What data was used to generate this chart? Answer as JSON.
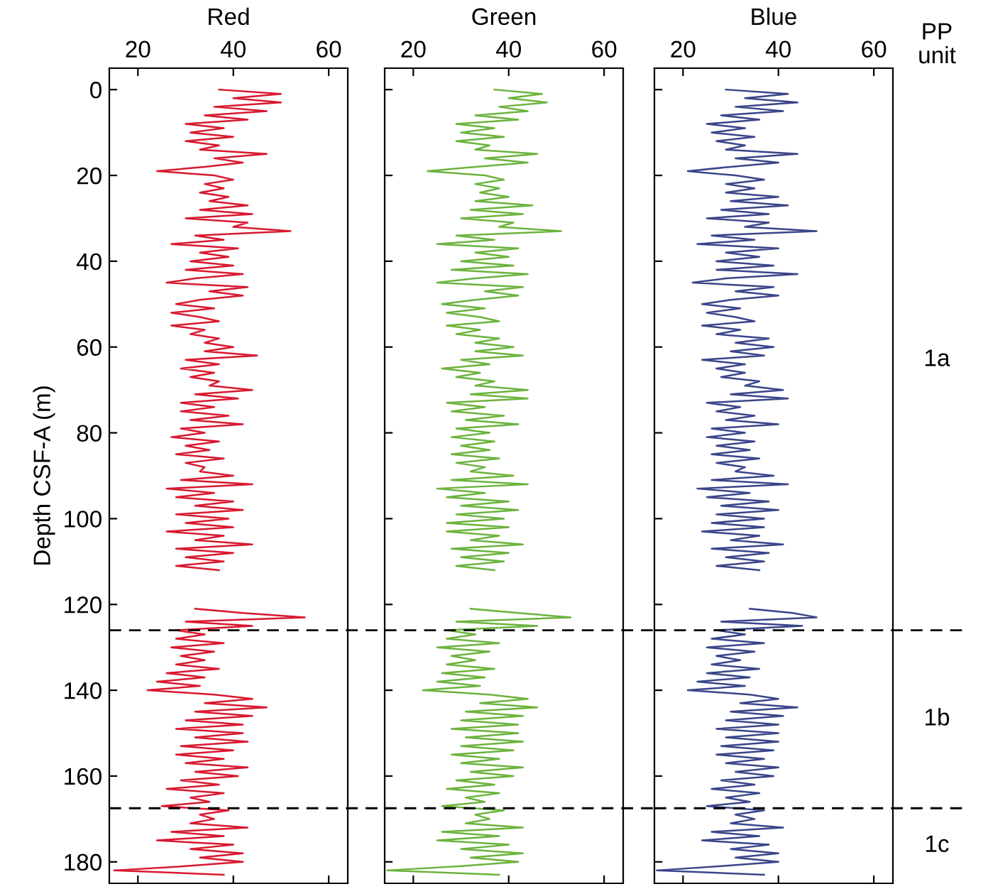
{
  "chart_data": [
    {
      "type": "line",
      "title": "Red",
      "ylabel": "Depth CSF-A (m)",
      "xlim": [
        14,
        64
      ],
      "xticks": [
        20,
        40,
        60
      ],
      "ylim": [
        185,
        -5
      ],
      "yticks": [
        0,
        20,
        40,
        60,
        80,
        100,
        120,
        140,
        160,
        180
      ],
      "grid": false,
      "line_style": "solid",
      "ref_lines": [
        {
          "axis": "y",
          "value": 126,
          "color": "#000000",
          "line_style": "dashed"
        },
        {
          "axis": "y",
          "value": 167.5,
          "color": "#000000",
          "line_style": "dashed"
        }
      ],
      "series": [
        {
          "color": "#d7192f",
          "x": [
            37,
            50,
            40,
            50,
            36,
            47,
            34,
            43,
            30,
            38,
            31,
            40,
            30,
            37,
            33,
            47,
            36,
            42,
            34,
            24,
            36,
            40,
            34,
            38,
            33,
            39,
            35,
            43,
            33,
            44,
            30,
            43,
            40,
            52,
            32,
            38,
            27,
            41,
            33,
            39,
            31,
            40,
            30,
            42,
            32,
            26,
            43,
            35,
            42,
            33,
            28,
            36,
            27,
            33,
            37,
            27,
            34,
            31,
            37,
            34,
            40,
            34,
            45,
            30,
            37,
            29,
            36,
            31,
            37,
            35,
            44,
            32,
            41,
            29,
            36,
            29,
            39,
            31,
            42,
            29,
            34,
            27,
            37,
            30,
            35,
            28,
            38,
            30,
            34,
            33,
            40,
            29,
            44,
            26,
            36,
            28,
            40,
            32,
            42,
            28,
            39,
            30,
            40,
            26,
            38,
            32,
            44,
            28,
            40,
            30,
            38,
            28,
            37,
            null,
            32,
            42,
            55,
            30,
            44,
            28,
            34,
            28,
            38,
            27,
            36,
            29,
            34,
            28,
            37,
            26,
            34,
            24,
            33,
            22,
            36,
            44,
            34,
            47,
            32,
            44,
            30,
            42,
            28,
            42,
            32,
            43,
            29,
            40,
            28,
            38,
            30,
            43,
            32,
            41,
            29,
            37,
            26,
            38,
            31,
            35,
            25,
            39,
            33,
            36,
            31,
            43,
            27,
            38,
            24,
            40,
            31,
            42,
            33,
            42,
            30,
            15,
            38
          ],
          "values": [
            0,
            1,
            2,
            3,
            4,
            5,
            6,
            7,
            8,
            9,
            10,
            11,
            12,
            13,
            14,
            15,
            16,
            17,
            18,
            19,
            20,
            21,
            22,
            23,
            24,
            25,
            26,
            27,
            28,
            29,
            30,
            31,
            32,
            33,
            34,
            35,
            36,
            37,
            38,
            39,
            40,
            41,
            42,
            43,
            44,
            45,
            46,
            47,
            48,
            49,
            50,
            51,
            52,
            53,
            54,
            55,
            56,
            57,
            58,
            59,
            60,
            61,
            62,
            63,
            64,
            65,
            66,
            67,
            68,
            69,
            70,
            71,
            72,
            73,
            74,
            75,
            76,
            77,
            78,
            79,
            80,
            81,
            82,
            83,
            84,
            85,
            86,
            87,
            88,
            89,
            90,
            91,
            92,
            93,
            94,
            95,
            96,
            97,
            98,
            99,
            100,
            101,
            102,
            103,
            104,
            105,
            106,
            107,
            108,
            109,
            110,
            111,
            112,
            null,
            121,
            122,
            123,
            124,
            125,
            126,
            127,
            128,
            129,
            130,
            131,
            132,
            133,
            134,
            135,
            136,
            137,
            138,
            139,
            140,
            141,
            142,
            143,
            144,
            145,
            146,
            147,
            148,
            149,
            150,
            151,
            152,
            153,
            154,
            155,
            156,
            157,
            158,
            159,
            160,
            161,
            162,
            163,
            164,
            165,
            166,
            167,
            168,
            169,
            170,
            171,
            172,
            173,
            174,
            175,
            176,
            177,
            178,
            179,
            180,
            181,
            182,
            183
          ]
        }
      ]
    },
    {
      "type": "line",
      "title": "Green",
      "xlim": [
        14,
        64
      ],
      "xticks": [
        20,
        40,
        60
      ],
      "ylim": [
        185,
        -5
      ],
      "yticks": [
        0,
        20,
        40,
        60,
        80,
        100,
        120,
        140,
        160,
        180
      ],
      "tick_labels": "x",
      "grid": false,
      "line_style": "solid",
      "ref_lines": [
        {
          "axis": "y",
          "value": 126,
          "color": "#000000",
          "line_style": "dashed"
        },
        {
          "axis": "y",
          "value": 167.5,
          "color": "#000000",
          "line_style": "dashed"
        }
      ],
      "series": [
        {
          "color": "#6cb33f",
          "x": [
            37,
            47,
            40,
            48,
            38,
            44,
            33,
            42,
            29,
            37,
            30,
            39,
            29,
            36,
            33,
            46,
            35,
            44,
            33,
            23,
            35,
            39,
            33,
            38,
            34,
            40,
            33,
            45,
            32,
            43,
            30,
            41,
            38,
            51,
            29,
            37,
            25,
            42,
            33,
            40,
            30,
            41,
            28,
            44,
            33,
            25,
            43,
            35,
            42,
            33,
            26,
            35,
            27,
            34,
            38,
            27,
            34,
            29,
            38,
            33,
            41,
            33,
            43,
            30,
            36,
            26,
            34,
            29,
            37,
            33,
            44,
            32,
            44,
            27,
            35,
            28,
            39,
            31,
            42,
            29,
            36,
            28,
            37,
            30,
            36,
            28,
            38,
            29,
            35,
            32,
            41,
            28,
            44,
            25,
            35,
            27,
            40,
            30,
            42,
            29,
            39,
            27,
            40,
            27,
            38,
            32,
            43,
            28,
            40,
            30,
            39,
            29,
            37,
            null,
            32,
            42,
            53,
            29,
            46,
            27,
            33,
            27,
            38,
            25,
            36,
            28,
            33,
            27,
            37,
            26,
            35,
            25,
            34,
            22,
            36,
            44,
            34,
            46,
            31,
            43,
            30,
            42,
            28,
            42,
            31,
            43,
            30,
            41,
            28,
            38,
            30,
            43,
            32,
            41,
            29,
            37,
            27,
            38,
            31,
            35,
            26,
            39,
            33,
            36,
            31,
            43,
            26,
            38,
            25,
            40,
            30,
            43,
            32,
            42,
            30,
            14.5,
            38
          ],
          "values": [
            0,
            1,
            2,
            3,
            4,
            5,
            6,
            7,
            8,
            9,
            10,
            11,
            12,
            13,
            14,
            15,
            16,
            17,
            18,
            19,
            20,
            21,
            22,
            23,
            24,
            25,
            26,
            27,
            28,
            29,
            30,
            31,
            32,
            33,
            34,
            35,
            36,
            37,
            38,
            39,
            40,
            41,
            42,
            43,
            44,
            45,
            46,
            47,
            48,
            49,
            50,
            51,
            52,
            53,
            54,
            55,
            56,
            57,
            58,
            59,
            60,
            61,
            62,
            63,
            64,
            65,
            66,
            67,
            68,
            69,
            70,
            71,
            72,
            73,
            74,
            75,
            76,
            77,
            78,
            79,
            80,
            81,
            82,
            83,
            84,
            85,
            86,
            87,
            88,
            89,
            90,
            91,
            92,
            93,
            94,
            95,
            96,
            97,
            98,
            99,
            100,
            101,
            102,
            103,
            104,
            105,
            106,
            107,
            108,
            109,
            110,
            111,
            112,
            null,
            121,
            122,
            123,
            124,
            125,
            126,
            127,
            128,
            129,
            130,
            131,
            132,
            133,
            134,
            135,
            136,
            137,
            138,
            139,
            140,
            141,
            142,
            143,
            144,
            145,
            146,
            147,
            148,
            149,
            150,
            151,
            152,
            153,
            154,
            155,
            156,
            157,
            158,
            159,
            160,
            161,
            162,
            163,
            164,
            165,
            166,
            167,
            168,
            169,
            170,
            171,
            172,
            173,
            174,
            175,
            176,
            177,
            178,
            179,
            180,
            181,
            182,
            183
          ]
        }
      ]
    },
    {
      "type": "line",
      "title": "Blue",
      "xlim": [
        14,
        64
      ],
      "xticks": [
        20,
        40,
        60
      ],
      "ylim": [
        185,
        -5
      ],
      "yticks": [
        0,
        20,
        40,
        60,
        80,
        100,
        120,
        140,
        160,
        180
      ],
      "tick_labels": "x",
      "grid": false,
      "line_style": "solid",
      "annotations": [
        "PP unit",
        "1a",
        "1b",
        "1c"
      ],
      "ref_lines": [
        {
          "axis": "y",
          "value": 126,
          "color": "#000000",
          "line_style": "dashed"
        },
        {
          "axis": "y",
          "value": 167.5,
          "color": "#000000",
          "line_style": "dashed"
        }
      ],
      "series": [
        {
          "color": "#3a4589",
          "x": [
            29,
            42,
            33,
            44,
            31,
            41,
            28,
            36,
            25,
            33,
            26,
            35,
            27,
            33,
            29,
            44,
            31,
            40,
            30,
            21,
            31,
            37,
            29,
            35,
            29,
            40,
            30,
            42,
            28,
            38,
            25,
            38,
            33,
            48,
            26,
            35,
            23,
            40,
            29,
            36,
            27,
            39,
            27,
            44,
            29,
            22,
            39,
            31,
            40,
            30,
            24,
            32,
            25,
            31,
            35,
            24,
            32,
            27,
            38,
            31,
            39,
            30,
            37,
            24,
            33,
            27,
            33,
            28,
            36,
            33,
            41,
            30,
            42,
            25,
            32,
            27,
            35,
            29,
            40,
            26,
            33,
            25,
            35,
            27,
            34,
            26,
            36,
            27,
            33,
            31,
            39,
            26,
            42,
            23,
            34,
            25,
            38,
            28,
            40,
            27,
            37,
            26,
            37,
            24,
            36,
            30,
            41,
            26,
            38,
            29,
            37,
            27,
            36,
            null,
            34,
            43,
            48,
            28,
            45,
            27,
            33,
            26,
            37,
            25,
            35,
            27,
            32,
            26,
            36,
            25,
            34,
            23,
            33,
            21,
            34,
            40,
            32,
            44,
            30,
            41,
            29,
            40,
            27,
            40,
            29,
            40,
            28,
            39,
            27,
            37,
            29,
            40,
            31,
            39,
            28,
            35,
            26,
            36,
            29,
            34,
            25,
            37,
            31,
            35,
            30,
            41,
            26,
            36,
            24,
            38,
            30,
            40,
            31,
            40,
            28,
            14.5,
            37
          ],
          "values": [
            0,
            1,
            2,
            3,
            4,
            5,
            6,
            7,
            8,
            9,
            10,
            11,
            12,
            13,
            14,
            15,
            16,
            17,
            18,
            19,
            20,
            21,
            22,
            23,
            24,
            25,
            26,
            27,
            28,
            29,
            30,
            31,
            32,
            33,
            34,
            35,
            36,
            37,
            38,
            39,
            40,
            41,
            42,
            43,
            44,
            45,
            46,
            47,
            48,
            49,
            50,
            51,
            52,
            53,
            54,
            55,
            56,
            57,
            58,
            59,
            60,
            61,
            62,
            63,
            64,
            65,
            66,
            67,
            68,
            69,
            70,
            71,
            72,
            73,
            74,
            75,
            76,
            77,
            78,
            79,
            80,
            81,
            82,
            83,
            84,
            85,
            86,
            87,
            88,
            89,
            90,
            91,
            92,
            93,
            94,
            95,
            96,
            97,
            98,
            99,
            100,
            101,
            102,
            103,
            104,
            105,
            106,
            107,
            108,
            109,
            110,
            111,
            112,
            null,
            121,
            122,
            123,
            124,
            125,
            126,
            127,
            128,
            129,
            130,
            131,
            132,
            133,
            134,
            135,
            136,
            137,
            138,
            139,
            140,
            141,
            142,
            143,
            144,
            145,
            146,
            147,
            148,
            149,
            150,
            151,
            152,
            153,
            154,
            155,
            156,
            157,
            158,
            159,
            160,
            161,
            162,
            163,
            164,
            165,
            166,
            167,
            168,
            169,
            170,
            171,
            172,
            173,
            174,
            175,
            176,
            177,
            178,
            179,
            180,
            181,
            182,
            183
          ]
        }
      ]
    }
  ]
}
